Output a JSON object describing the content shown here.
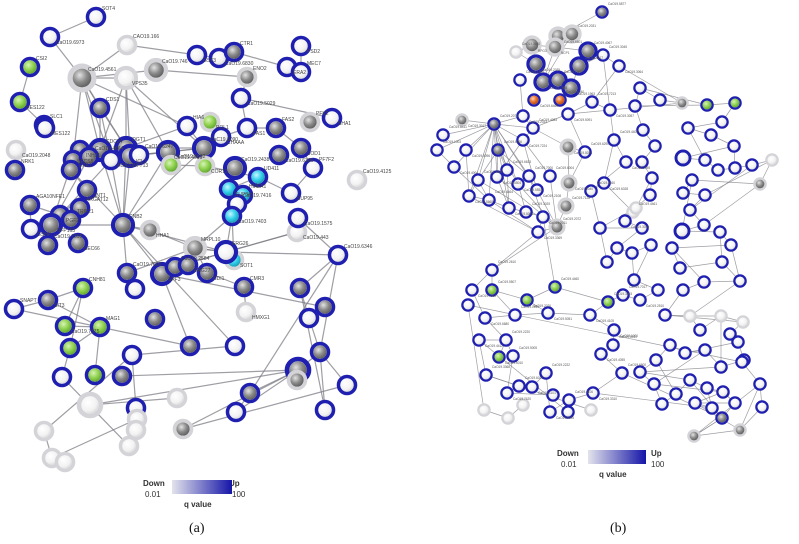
{
  "colors": {
    "edge": "#7d7d86",
    "ring_up": "#1f1fb0",
    "ring_light": "#d3d3d8",
    "fill_gray": "#8a8a8a",
    "fill_green": "#8fd14f",
    "fill_cyan": "#33d0ea",
    "fill_orange": "#e8702a",
    "legend_low": "#e3e3ec",
    "legend_high": "#1515a8"
  },
  "panel_a": {
    "caption": "(a)",
    "legend": {
      "down": "Down",
      "up": "Up",
      "min": "0.01",
      "max": "100",
      "q": "q value"
    },
    "labels": [
      "SOT4",
      "CaO19.6973",
      "CaO19.4561",
      "VPS35",
      "CaO19.746",
      "CaO19.6830",
      "CTR1",
      "ERA2",
      "CAO19.166",
      "GST3",
      "ENO2",
      "PSD2",
      "MEC7",
      "CaO19.5029",
      "CSI2",
      "HES122",
      "SLC1",
      "CaO19.2048",
      "CDS1",
      "MES122",
      "CDC24",
      "INH21",
      "OGT1",
      "ICL1",
      "CaO19.6247",
      "CaO19.4095",
      "HIA6",
      "POL1",
      "CaC19.6090",
      "FAS1",
      "FAS2",
      "SHA1",
      "PFK2",
      "SOD1",
      "PF7F2",
      "CHAAA",
      "CaO19.1602",
      "COR12",
      "CaO19.2438",
      "CaO19.6306",
      "UD411",
      "SUP84",
      "HMEA1",
      "SUP95",
      "CaO19.7416",
      "CaO19.7403",
      "NRK1",
      "EKA1",
      "CaO19.4864",
      "AGA10NF713",
      "SECS5",
      "SNT1",
      "ARGAT12",
      "PGF2",
      "AGA10NFE1",
      "SFP163",
      "TRIF21",
      "GSHP",
      "CaO19.7395",
      "SEC66",
      "CNB2",
      "HHA1",
      "MRPL10",
      "CaO19.443",
      "CaO19.4125",
      "CaO19.1575",
      "CaO19.6346",
      "SOT1",
      "CaO19.7000",
      "SPF3",
      "CaO19.2584",
      "NDI1",
      "ERG26",
      "ERG27",
      "CMR3",
      "HMXG1",
      "SNAPT",
      "SIT3",
      "CNH81",
      "CaO19.7375",
      "MAG1"
    ]
  },
  "panel_b": {
    "caption": "(b)",
    "legend": {
      "down": "Down",
      "up": "Up",
      "min": "0.01",
      "max": "100",
      "q": "q value"
    },
    "labels": [
      "CaO19.5877",
      "CaO19.6601",
      "CaO19.2031",
      "RPG3",
      "CaO19.3480",
      "NCP1",
      "CaO19.4067",
      "CaO19.2035",
      "CaO19.1905",
      "CaO19.7588",
      "CaO19.7562",
      "CaO19.1963",
      "CaO19.3045",
      "CaO19.3064",
      "CaO19.4217",
      "CaO19.6460",
      "CaO19.5940",
      "CaO19.2033",
      "CaO19.2071",
      "CaO19.3017",
      "CaO19.8411",
      "CaO19.5096",
      "CaO19.6066",
      "CaO19.7224",
      "CaO19.4083",
      "CaO19.5091",
      "CaO19.7213",
      "CaO19.5013",
      "CaO19.6290",
      "CaO19.3057",
      "CaO19.4409",
      "CaO19.2095",
      "CaO19.1003",
      "CaO19.4004",
      "CaO19.3066",
      "CaO19.5504",
      "CaO19.6633",
      "CaO19.5553",
      "CaO19.7000",
      "CaO19.2108",
      "CaO19.6004",
      "CaO19.5660",
      "CaO19.4464",
      "CaO19.5001",
      "CaO19.3025",
      "CaO19.2011",
      "CaO19.2072",
      "CaO19.3369",
      "CaO19.7128",
      "CaO19.6040",
      "CaO19.4460",
      "CaO19.6028",
      "CaO19.4461",
      "CaO19.3040",
      "CaO19.2610",
      "CaO19.7003",
      "CaO19.5507",
      "CaO19.2020",
      "CaO19.4460",
      "CaO19.6680",
      "CaO19.1514",
      "CaO19.5051",
      "CaO19.3003",
      "CaO19.4105",
      "CaO19.2220",
      "CaO19.6010",
      "CaO19.5005",
      "CaO19.4412",
      "CaO19.3368",
      "CaO19.7420",
      "CaO19.6021",
      "CaO19.1101",
      "CaO19.2222",
      "CaO19.5035",
      "CaO19.4106",
      "CaO19.3310",
      "CaO19.6600",
      "CaO19.1000",
      "CaO19.5511",
      "CaO19.4055",
      "CaO19.7017",
      "CaO19.2510"
    ]
  }
}
